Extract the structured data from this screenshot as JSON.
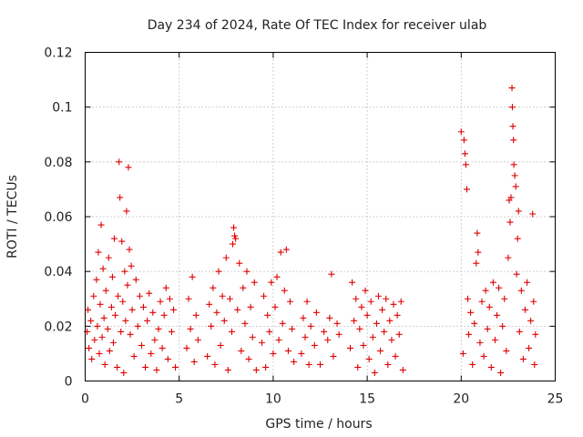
{
  "chart_data": {
    "type": "scatter",
    "title": "Day 234 of 2024, Rate Of TEC Index for receiver ulab",
    "xlabel": "GPS time / hours",
    "ylabel": "ROTI / TECUs",
    "xlim": [
      0,
      25
    ],
    "ylim": [
      0,
      0.12
    ],
    "x_ticks": [
      "0",
      "5",
      "10",
      "15",
      "20",
      "25"
    ],
    "y_ticks": [
      "0",
      "0.02",
      "0.04",
      "0.06",
      "0.08",
      "0.1",
      "0.12"
    ],
    "grid": true,
    "marker": "plus",
    "color": "#e00000",
    "series": [
      {
        "values": [
          [
            0.1,
            0.018
          ],
          [
            0.15,
            0.026
          ],
          [
            0.2,
            0.012
          ],
          [
            0.3,
            0.022
          ],
          [
            0.35,
            0.008
          ],
          [
            0.45,
            0.031
          ],
          [
            0.5,
            0.015
          ],
          [
            0.6,
            0.037
          ],
          [
            0.65,
            0.02
          ],
          [
            0.7,
            0.047
          ],
          [
            0.75,
            0.01
          ],
          [
            0.8,
            0.028
          ],
          [
            0.85,
            0.057
          ],
          [
            0.9,
            0.016
          ],
          [
            0.95,
            0.041
          ],
          [
            1.0,
            0.023
          ],
          [
            1.05,
            0.006
          ],
          [
            1.1,
            0.033
          ],
          [
            1.2,
            0.019
          ],
          [
            1.25,
            0.045
          ],
          [
            1.3,
            0.011
          ],
          [
            1.4,
            0.027
          ],
          [
            1.45,
            0.038
          ],
          [
            1.5,
            0.014
          ],
          [
            1.55,
            0.052
          ],
          [
            1.6,
            0.024
          ],
          [
            1.7,
            0.005
          ],
          [
            1.75,
            0.031
          ],
          [
            1.8,
            0.08
          ],
          [
            1.85,
            0.067
          ],
          [
            1.9,
            0.018
          ],
          [
            1.95,
            0.051
          ],
          [
            2.0,
            0.029
          ],
          [
            2.05,
            0.003
          ],
          [
            2.1,
            0.04
          ],
          [
            2.15,
            0.022
          ],
          [
            2.2,
            0.062
          ],
          [
            2.25,
            0.035
          ],
          [
            2.3,
            0.078
          ],
          [
            2.35,
            0.048
          ],
          [
            2.4,
            0.017
          ],
          [
            2.45,
            0.042
          ],
          [
            2.5,
            0.026
          ],
          [
            2.6,
            0.009
          ],
          [
            2.7,
            0.037
          ],
          [
            2.8,
            0.02
          ],
          [
            2.9,
            0.031
          ],
          [
            3.0,
            0.013
          ],
          [
            3.1,
            0.027
          ],
          [
            3.2,
            0.005
          ],
          [
            3.3,
            0.022
          ],
          [
            3.4,
            0.032
          ],
          [
            3.5,
            0.01
          ],
          [
            3.6,
            0.025
          ],
          [
            3.7,
            0.015
          ],
          [
            3.8,
            0.004
          ],
          [
            3.9,
            0.019
          ],
          [
            4.0,
            0.029
          ],
          [
            4.1,
            0.012
          ],
          [
            4.2,
            0.024
          ],
          [
            4.3,
            0.034
          ],
          [
            4.4,
            0.008
          ],
          [
            4.5,
            0.03
          ],
          [
            4.6,
            0.018
          ],
          [
            4.7,
            0.026
          ],
          [
            4.8,
            0.005
          ],
          [
            5.4,
            0.012
          ],
          [
            5.5,
            0.03
          ],
          [
            5.6,
            0.019
          ],
          [
            5.7,
            0.038
          ],
          [
            5.8,
            0.007
          ],
          [
            5.9,
            0.024
          ],
          [
            6.0,
            0.015
          ],
          [
            6.5,
            0.009
          ],
          [
            6.6,
            0.028
          ],
          [
            6.7,
            0.02
          ],
          [
            6.8,
            0.034
          ],
          [
            6.9,
            0.006
          ],
          [
            7.0,
            0.025
          ],
          [
            7.1,
            0.04
          ],
          [
            7.2,
            0.013
          ],
          [
            7.3,
            0.031
          ],
          [
            7.4,
            0.022
          ],
          [
            7.5,
            0.045
          ],
          [
            7.6,
            0.004
          ],
          [
            7.7,
            0.03
          ],
          [
            7.8,
            0.018
          ],
          [
            7.85,
            0.05
          ],
          [
            7.9,
            0.056
          ],
          [
            7.95,
            0.053
          ],
          [
            8.0,
            0.052
          ],
          [
            8.1,
            0.026
          ],
          [
            8.2,
            0.043
          ],
          [
            8.3,
            0.011
          ],
          [
            8.4,
            0.034
          ],
          [
            8.5,
            0.021
          ],
          [
            8.6,
            0.04
          ],
          [
            8.7,
            0.008
          ],
          [
            8.8,
            0.027
          ],
          [
            8.9,
            0.016
          ],
          [
            9.0,
            0.036
          ],
          [
            9.1,
            0.004
          ],
          [
            9.4,
            0.014
          ],
          [
            9.5,
            0.031
          ],
          [
            9.6,
            0.005
          ],
          [
            9.7,
            0.024
          ],
          [
            9.8,
            0.018
          ],
          [
            9.9,
            0.036
          ],
          [
            10.0,
            0.01
          ],
          [
            10.1,
            0.027
          ],
          [
            10.2,
            0.038
          ],
          [
            10.3,
            0.015
          ],
          [
            10.4,
            0.047
          ],
          [
            10.5,
            0.021
          ],
          [
            10.6,
            0.033
          ],
          [
            10.7,
            0.048
          ],
          [
            10.8,
            0.011
          ],
          [
            10.9,
            0.029
          ],
          [
            11.0,
            0.019
          ],
          [
            11.1,
            0.007
          ],
          [
            11.5,
            0.01
          ],
          [
            11.6,
            0.023
          ],
          [
            11.7,
            0.016
          ],
          [
            11.8,
            0.029
          ],
          [
            11.9,
            0.006
          ],
          [
            12.0,
            0.02
          ],
          [
            12.2,
            0.013
          ],
          [
            12.3,
            0.025
          ],
          [
            12.5,
            0.006
          ],
          [
            12.7,
            0.018
          ],
          [
            12.9,
            0.015
          ],
          [
            13.0,
            0.023
          ],
          [
            13.1,
            0.039
          ],
          [
            13.2,
            0.009
          ],
          [
            13.4,
            0.021
          ],
          [
            13.5,
            0.017
          ],
          [
            14.1,
            0.012
          ],
          [
            14.2,
            0.036
          ],
          [
            14.3,
            0.022
          ],
          [
            14.4,
            0.03
          ],
          [
            14.5,
            0.005
          ],
          [
            14.6,
            0.019
          ],
          [
            14.7,
            0.027
          ],
          [
            14.8,
            0.013
          ],
          [
            14.9,
            0.033
          ],
          [
            15.0,
            0.024
          ],
          [
            15.1,
            0.008
          ],
          [
            15.2,
            0.029
          ],
          [
            15.3,
            0.016
          ],
          [
            15.4,
            0.003
          ],
          [
            15.5,
            0.021
          ],
          [
            15.6,
            0.031
          ],
          [
            15.7,
            0.011
          ],
          [
            15.8,
            0.026
          ],
          [
            15.9,
            0.018
          ],
          [
            16.0,
            0.03
          ],
          [
            16.1,
            0.006
          ],
          [
            16.2,
            0.022
          ],
          [
            16.3,
            0.015
          ],
          [
            16.4,
            0.028
          ],
          [
            16.5,
            0.009
          ],
          [
            16.6,
            0.024
          ],
          [
            16.7,
            0.017
          ],
          [
            16.8,
            0.029
          ],
          [
            16.9,
            0.004
          ],
          [
            20.0,
            0.091
          ],
          [
            20.1,
            0.01
          ],
          [
            20.15,
            0.088
          ],
          [
            20.2,
            0.083
          ],
          [
            20.25,
            0.079
          ],
          [
            20.3,
            0.07
          ],
          [
            20.35,
            0.03
          ],
          [
            20.4,
            0.017
          ],
          [
            20.5,
            0.025
          ],
          [
            20.6,
            0.006
          ],
          [
            20.7,
            0.021
          ],
          [
            20.8,
            0.043
          ],
          [
            20.85,
            0.054
          ],
          [
            20.9,
            0.047
          ],
          [
            21.0,
            0.014
          ],
          [
            21.1,
            0.029
          ],
          [
            21.2,
            0.009
          ],
          [
            21.3,
            0.033
          ],
          [
            21.4,
            0.019
          ],
          [
            21.5,
            0.027
          ],
          [
            21.6,
            0.005
          ],
          [
            21.7,
            0.036
          ],
          [
            21.8,
            0.015
          ],
          [
            21.9,
            0.024
          ],
          [
            22.0,
            0.034
          ],
          [
            22.1,
            0.003
          ],
          [
            22.2,
            0.02
          ],
          [
            22.3,
            0.03
          ],
          [
            22.4,
            0.011
          ],
          [
            22.5,
            0.045
          ],
          [
            22.55,
            0.066
          ],
          [
            22.6,
            0.058
          ],
          [
            22.65,
            0.067
          ],
          [
            22.7,
            0.107
          ],
          [
            22.72,
            0.1
          ],
          [
            22.75,
            0.093
          ],
          [
            22.78,
            0.088
          ],
          [
            22.8,
            0.079
          ],
          [
            22.85,
            0.075
          ],
          [
            22.9,
            0.071
          ],
          [
            22.95,
            0.039
          ],
          [
            23.0,
            0.052
          ],
          [
            23.05,
            0.062
          ],
          [
            23.1,
            0.018
          ],
          [
            23.2,
            0.033
          ],
          [
            23.3,
            0.008
          ],
          [
            23.4,
            0.026
          ],
          [
            23.5,
            0.036
          ],
          [
            23.6,
            0.012
          ],
          [
            23.7,
            0.022
          ],
          [
            23.8,
            0.061
          ],
          [
            23.85,
            0.029
          ],
          [
            23.9,
            0.006
          ],
          [
            23.95,
            0.017
          ]
        ]
      }
    ]
  }
}
